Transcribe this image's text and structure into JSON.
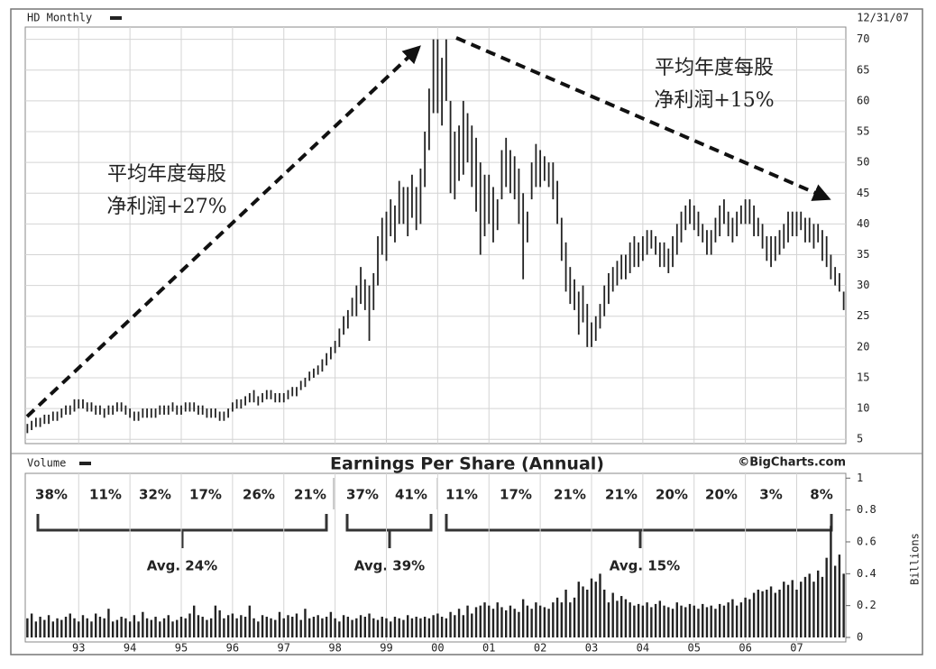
{
  "chart_data": {
    "type": "range-volume",
    "symbol": "HD Monthly",
    "date": "12/31/07",
    "volume_label": "Volume",
    "source": "©BigCharts.com",
    "volume_unit": "Billions",
    "categories": [
      null,
      null,
      null,
      null,
      null,
      null,
      null,
      null,
      null,
      null,
      null,
      null,
      null,
      null,
      null,
      null,
      null,
      null,
      null,
      null,
      null,
      null,
      null,
      null,
      null,
      null,
      null,
      null,
      null,
      null,
      null,
      null,
      null,
      null,
      null,
      null,
      null,
      null,
      null,
      null,
      null,
      null,
      null,
      null,
      null,
      null,
      null,
      null,
      null,
      null,
      null,
      null,
      null,
      null,
      null,
      null,
      null,
      null,
      null,
      null,
      null,
      null,
      null,
      null,
      null,
      null,
      null,
      null,
      null,
      null,
      null,
      null,
      null,
      null,
      null,
      null,
      null,
      null,
      null,
      null,
      null,
      null,
      null,
      null,
      null,
      null,
      null,
      null,
      null,
      null,
      null,
      null,
      null,
      null,
      null,
      null,
      null,
      null,
      null,
      null,
      null,
      null,
      null,
      null,
      null,
      null,
      null,
      null,
      null,
      null,
      null,
      null,
      null,
      null,
      null,
      null,
      null,
      null,
      null,
      null,
      null,
      null,
      null,
      null,
      null,
      null,
      null,
      null,
      null,
      null,
      null,
      null,
      null,
      null,
      null,
      null,
      null,
      null,
      null,
      null,
      null,
      null,
      null,
      null,
      null,
      null,
      null,
      null,
      null,
      null,
      null,
      null,
      null,
      null,
      null,
      null,
      null,
      null,
      null,
      null,
      null,
      null,
      null,
      null,
      null,
      null,
      null,
      null,
      null,
      null,
      null,
      null,
      null,
      null,
      null,
      null,
      null,
      null,
      null,
      null,
      null,
      null,
      null,
      null,
      null,
      null,
      null,
      null,
      null,
      null,
      null,
      null
    ],
    "low": [
      6,
      6.5,
      7,
      7,
      7.5,
      7.5,
      8,
      8,
      8.5,
      9,
      9,
      9.5,
      10,
      10,
      9.5,
      9.5,
      9,
      9,
      8.5,
      9,
      9,
      9.5,
      9.5,
      9,
      8.5,
      8,
      8,
      8.5,
      8.5,
      8.5,
      8.5,
      9,
      9,
      9,
      9.5,
      9,
      9,
      9.5,
      9.5,
      9.5,
      9,
      9,
      8.5,
      8.5,
      8.5,
      8,
      8,
      8.5,
      9.5,
      10,
      10,
      10.5,
      11,
      11,
      10.5,
      11,
      11.5,
      11.5,
      11,
      11,
      11,
      11.5,
      12,
      12,
      13,
      13.5,
      14.5,
      15,
      15.5,
      16,
      17,
      18,
      19,
      20,
      22,
      23,
      25,
      25,
      27,
      26,
      21,
      26,
      30,
      35,
      34,
      38,
      37,
      40,
      40,
      38,
      41,
      39,
      40,
      46,
      52,
      58,
      58,
      56,
      60,
      45,
      44,
      47,
      48,
      50,
      46,
      42,
      35,
      38,
      40,
      37,
      39,
      44,
      46,
      45,
      44,
      40,
      31,
      37,
      44,
      46,
      46,
      47,
      46,
      44,
      40,
      34,
      29,
      27,
      26,
      22,
      24,
      20,
      20,
      21,
      23,
      25,
      27,
      29,
      30,
      31,
      31,
      32,
      33,
      33,
      34,
      35,
      36,
      35,
      33,
      33,
      32,
      33,
      35,
      37,
      39,
      40,
      39,
      38,
      37,
      35,
      35,
      37,
      38,
      40,
      38,
      37,
      38,
      40,
      40,
      40,
      38,
      38,
      36,
      34,
      33,
      34,
      35,
      36,
      37,
      38,
      38,
      39,
      37,
      37,
      36,
      37,
      34,
      33,
      31,
      30,
      29,
      26
    ],
    "high": [
      7.5,
      8,
      8.5,
      8.5,
      9,
      9,
      9.5,
      9.5,
      10,
      10.5,
      10.5,
      11.5,
      11.5,
      11.5,
      11,
      11,
      10.5,
      10.5,
      10,
      10.5,
      10.5,
      11,
      11,
      10.5,
      10,
      9.5,
      9.5,
      10,
      10,
      10,
      10,
      10.5,
      10.5,
      10.5,
      11,
      10.5,
      10.5,
      11,
      11,
      11,
      10.5,
      10.5,
      10,
      10,
      10,
      9.5,
      9.5,
      10,
      11,
      11.5,
      11.5,
      12,
      12.5,
      13,
      12,
      12.5,
      13,
      13,
      12.5,
      12.5,
      12.5,
      13,
      13.5,
      13.5,
      14.5,
      15,
      16,
      16.5,
      17,
      18,
      19,
      20,
      21,
      23,
      25,
      26,
      28,
      30,
      33,
      31,
      30,
      32,
      38,
      41,
      42,
      44,
      43,
      47,
      46,
      46,
      48,
      46,
      49,
      55,
      62,
      70,
      70,
      67,
      70,
      60,
      55,
      56,
      60,
      58,
      56,
      54,
      50,
      48,
      48,
      46,
      44,
      52,
      54,
      52,
      51,
      49,
      45,
      42,
      50,
      53,
      52,
      51,
      50,
      50,
      47,
      41,
      37,
      33,
      31,
      29,
      30,
      27,
      24,
      25,
      27,
      30,
      32,
      33,
      34,
      35,
      35,
      37,
      38,
      37,
      38,
      39,
      39,
      38,
      37,
      37,
      36,
      38,
      40,
      42,
      43,
      44,
      43,
      42,
      40,
      39,
      39,
      41,
      43,
      44,
      42,
      41,
      42,
      43,
      44,
      44,
      43,
      41,
      40,
      38,
      38,
      38,
      39,
      40,
      42,
      42,
      42,
      42,
      41,
      41,
      40,
      40,
      39,
      38,
      35,
      33,
      32,
      29
    ],
    "volume": [
      0.12,
      0.15,
      0.1,
      0.13,
      0.11,
      0.14,
      0.1,
      0.12,
      0.11,
      0.13,
      0.15,
      0.12,
      0.1,
      0.14,
      0.12,
      0.1,
      0.15,
      0.13,
      0.12,
      0.18,
      0.1,
      0.11,
      0.13,
      0.12,
      0.1,
      0.14,
      0.1,
      0.16,
      0.12,
      0.11,
      0.13,
      0.1,
      0.12,
      0.14,
      0.1,
      0.11,
      0.13,
      0.12,
      0.15,
      0.2,
      0.14,
      0.13,
      0.11,
      0.12,
      0.2,
      0.17,
      0.12,
      0.14,
      0.15,
      0.12,
      0.14,
      0.13,
      0.2,
      0.12,
      0.1,
      0.14,
      0.13,
      0.12,
      0.11,
      0.16,
      0.12,
      0.14,
      0.13,
      0.15,
      0.11,
      0.18,
      0.12,
      0.13,
      0.14,
      0.12,
      0.13,
      0.16,
      0.12,
      0.1,
      0.14,
      0.13,
      0.11,
      0.12,
      0.14,
      0.13,
      0.15,
      0.12,
      0.11,
      0.13,
      0.12,
      0.1,
      0.13,
      0.12,
      0.11,
      0.14,
      0.12,
      0.13,
      0.12,
      0.13,
      0.12,
      0.14,
      0.15,
      0.13,
      0.12,
      0.16,
      0.14,
      0.18,
      0.14,
      0.2,
      0.15,
      0.19,
      0.2,
      0.22,
      0.2,
      0.18,
      0.22,
      0.19,
      0.17,
      0.2,
      0.18,
      0.16,
      0.24,
      0.2,
      0.18,
      0.22,
      0.2,
      0.19,
      0.18,
      0.22,
      0.25,
      0.22,
      0.3,
      0.22,
      0.25,
      0.35,
      0.32,
      0.3,
      0.37,
      0.35,
      0.4,
      0.3,
      0.22,
      0.28,
      0.23,
      0.26,
      0.24,
      0.22,
      0.2,
      0.21,
      0.2,
      0.22,
      0.19,
      0.21,
      0.23,
      0.2,
      0.19,
      0.18,
      0.22,
      0.2,
      0.19,
      0.21,
      0.2,
      0.18,
      0.21,
      0.19,
      0.2,
      0.18,
      0.21,
      0.2,
      0.22,
      0.24,
      0.2,
      0.22,
      0.25,
      0.24,
      0.28,
      0.3,
      0.29,
      0.3,
      0.32,
      0.28,
      0.3,
      0.35,
      0.33,
      0.36,
      0.3,
      0.35,
      0.38,
      0.4,
      0.35,
      0.42,
      0.38,
      0.5,
      0.7,
      0.45,
      0.52,
      0.4
    ],
    "ylim": [
      4.3,
      72
    ],
    "yticks": [
      5,
      10,
      15,
      20,
      25,
      30,
      35,
      40,
      45,
      50,
      55,
      60,
      65,
      70
    ],
    "volume_ylim": [
      0,
      1.03
    ],
    "volume_yticks": [
      0,
      0.2,
      0.4,
      0.6,
      0.8,
      1
    ],
    "xticks": [
      {
        "value": 12,
        "label": "93"
      },
      {
        "value": 24,
        "label": "94"
      },
      {
        "value": 36,
        "label": "95"
      },
      {
        "value": 48,
        "label": "96"
      },
      {
        "value": 60,
        "label": "97"
      },
      {
        "value": 72,
        "label": "98"
      },
      {
        "value": 84,
        "label": "99"
      },
      {
        "value": 96,
        "label": "00"
      },
      {
        "value": 108,
        "label": "01"
      },
      {
        "value": 120,
        "label": "02"
      },
      {
        "value": 132,
        "label": "03"
      },
      {
        "value": 144,
        "label": "04"
      },
      {
        "value": 156,
        "label": "05"
      },
      {
        "value": 168,
        "label": "06"
      },
      {
        "value": 180,
        "label": "07"
      }
    ],
    "grid": true,
    "color": "#222222",
    "annotations": [
      [
        "平均年度每股",
        "净利润+27%"
      ],
      [
        "平均年度每股",
        "净利润+15%"
      ]
    ],
    "eps": {
      "title": "Earnings Per Share (Annual)",
      "growth": [
        "38%",
        "11%",
        "32%",
        "17%",
        "26%",
        "21%",
        "37%",
        "41%",
        "11%",
        "17%",
        "21%",
        "21%",
        "20%",
        "20%",
        "3%",
        "8%"
      ],
      "averages": [
        "Avg. 24%",
        "Avg. 39%",
        "Avg. 15%"
      ]
    }
  }
}
